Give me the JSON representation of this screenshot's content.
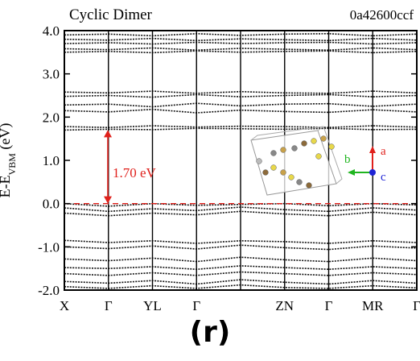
{
  "panel": {
    "title": "Cyclic Dimer",
    "id": "0a42600ccf",
    "caption": "(r)"
  },
  "chart_data": {
    "type": "line",
    "title": "Cyclic Dimer",
    "ylabel_main": "E-E",
    "ylabel_sub": "VBM",
    "ylabel_unit": "(eV)",
    "ylim": [
      -2.0,
      4.0
    ],
    "yticks": [
      -2.0,
      -1.0,
      0.0,
      1.0,
      2.0,
      3.0,
      4.0
    ],
    "ytick_labels": [
      "-2.0",
      "-1.0",
      "0.0",
      "1.0",
      "2.0",
      "3.0",
      "4.0"
    ],
    "k_segments": [
      0,
      1,
      2,
      3,
      4,
      5,
      6,
      7,
      8
    ],
    "k_labels": [
      {
        "k": 0,
        "label": "X"
      },
      {
        "k": 1,
        "label": "Γ"
      },
      {
        "k": 2,
        "label": "YL"
      },
      {
        "k": 3,
        "label": "Γ"
      },
      {
        "k": 5,
        "label": "ZN"
      },
      {
        "k": 6,
        "label": "Γ"
      },
      {
        "k": 7,
        "label": "MR"
      },
      {
        "k": 8,
        "label": "Γ"
      }
    ],
    "k_dividers": [
      1,
      2,
      3,
      4,
      5,
      6,
      7
    ],
    "fermi_level": 0.0,
    "band_gap": {
      "value": 1.7,
      "label": "1.70 eV",
      "from": 0.0,
      "to": 1.7
    },
    "valence_bands": [
      [
        0.0,
        -0.06,
        0.0,
        -0.04,
        -0.02,
        0.0,
        -0.05,
        0.0,
        -0.03
      ],
      [
        -0.1,
        -0.18,
        -0.12,
        -0.16,
        -0.08,
        -0.14,
        -0.18,
        -0.1,
        -0.15
      ],
      [
        -0.22,
        -0.28,
        -0.22,
        -0.26,
        -0.18,
        -0.24,
        -0.28,
        -0.2,
        -0.26
      ],
      [
        -0.85,
        -0.9,
        -0.86,
        -0.92,
        -0.86,
        -0.88,
        -0.92,
        -0.86,
        -0.9
      ],
      [
        -1.0,
        -1.04,
        -0.98,
        -1.05,
        -0.96,
        -1.02,
        -1.06,
        -0.98,
        -1.03
      ],
      [
        -1.28,
        -1.32,
        -1.26,
        -1.34,
        -1.24,
        -1.3,
        -1.34,
        -1.26,
        -1.32
      ],
      [
        -1.48,
        -1.5,
        -1.46,
        -1.52,
        -1.44,
        -1.48,
        -1.52,
        -1.46,
        -1.5
      ],
      [
        -1.62,
        -1.66,
        -1.6,
        -1.66,
        -1.58,
        -1.62,
        -1.66,
        -1.6,
        -1.64
      ],
      [
        -1.8,
        -1.84,
        -1.78,
        -1.86,
        -1.76,
        -1.82,
        -1.86,
        -1.78,
        -1.84
      ],
      [
        -1.92,
        -1.96,
        -1.9,
        -1.96,
        -1.88,
        -1.94,
        -1.96,
        -1.9,
        -1.95
      ]
    ],
    "conduction_bands": [
      [
        1.7,
        1.72,
        1.71,
        1.74,
        1.73,
        1.72,
        1.74,
        1.71,
        1.72
      ],
      [
        1.78,
        1.76,
        1.8,
        1.77,
        1.79,
        1.78,
        1.76,
        1.8,
        1.77
      ],
      [
        2.15,
        2.12,
        2.18,
        2.1,
        2.16,
        2.13,
        2.11,
        2.17,
        2.12
      ],
      [
        2.28,
        2.3,
        2.24,
        2.32,
        2.26,
        2.3,
        2.31,
        2.25,
        2.3
      ],
      [
        2.48,
        2.5,
        2.46,
        2.52,
        2.47,
        2.5,
        2.52,
        2.47,
        2.5
      ],
      [
        2.58,
        2.56,
        2.6,
        2.55,
        2.59,
        2.56,
        2.55,
        2.6,
        2.56
      ],
      [
        3.5,
        3.52,
        3.49,
        3.53,
        3.5,
        3.52,
        3.53,
        3.49,
        3.52
      ],
      [
        3.58,
        3.56,
        3.6,
        3.55,
        3.59,
        3.57,
        3.55,
        3.6,
        3.56
      ],
      [
        3.7,
        3.72,
        3.69,
        3.73,
        3.7,
        3.72,
        3.73,
        3.69,
        3.72
      ],
      [
        3.8,
        3.78,
        3.82,
        3.77,
        3.81,
        3.79,
        3.77,
        3.82,
        3.78
      ],
      [
        3.9,
        3.92,
        3.88,
        3.93,
        3.89,
        3.92,
        3.93,
        3.88,
        3.92
      ]
    ],
    "inset_axes": {
      "a": "a",
      "b": "b",
      "c": "c"
    },
    "colors": {
      "bands": "#111111",
      "fermi": "#e0201b",
      "gap_arrow": "#e0201b",
      "axis_a": "#e0201b",
      "axis_b": "#1fb51f",
      "axis_c": "#1f24d6"
    }
  }
}
